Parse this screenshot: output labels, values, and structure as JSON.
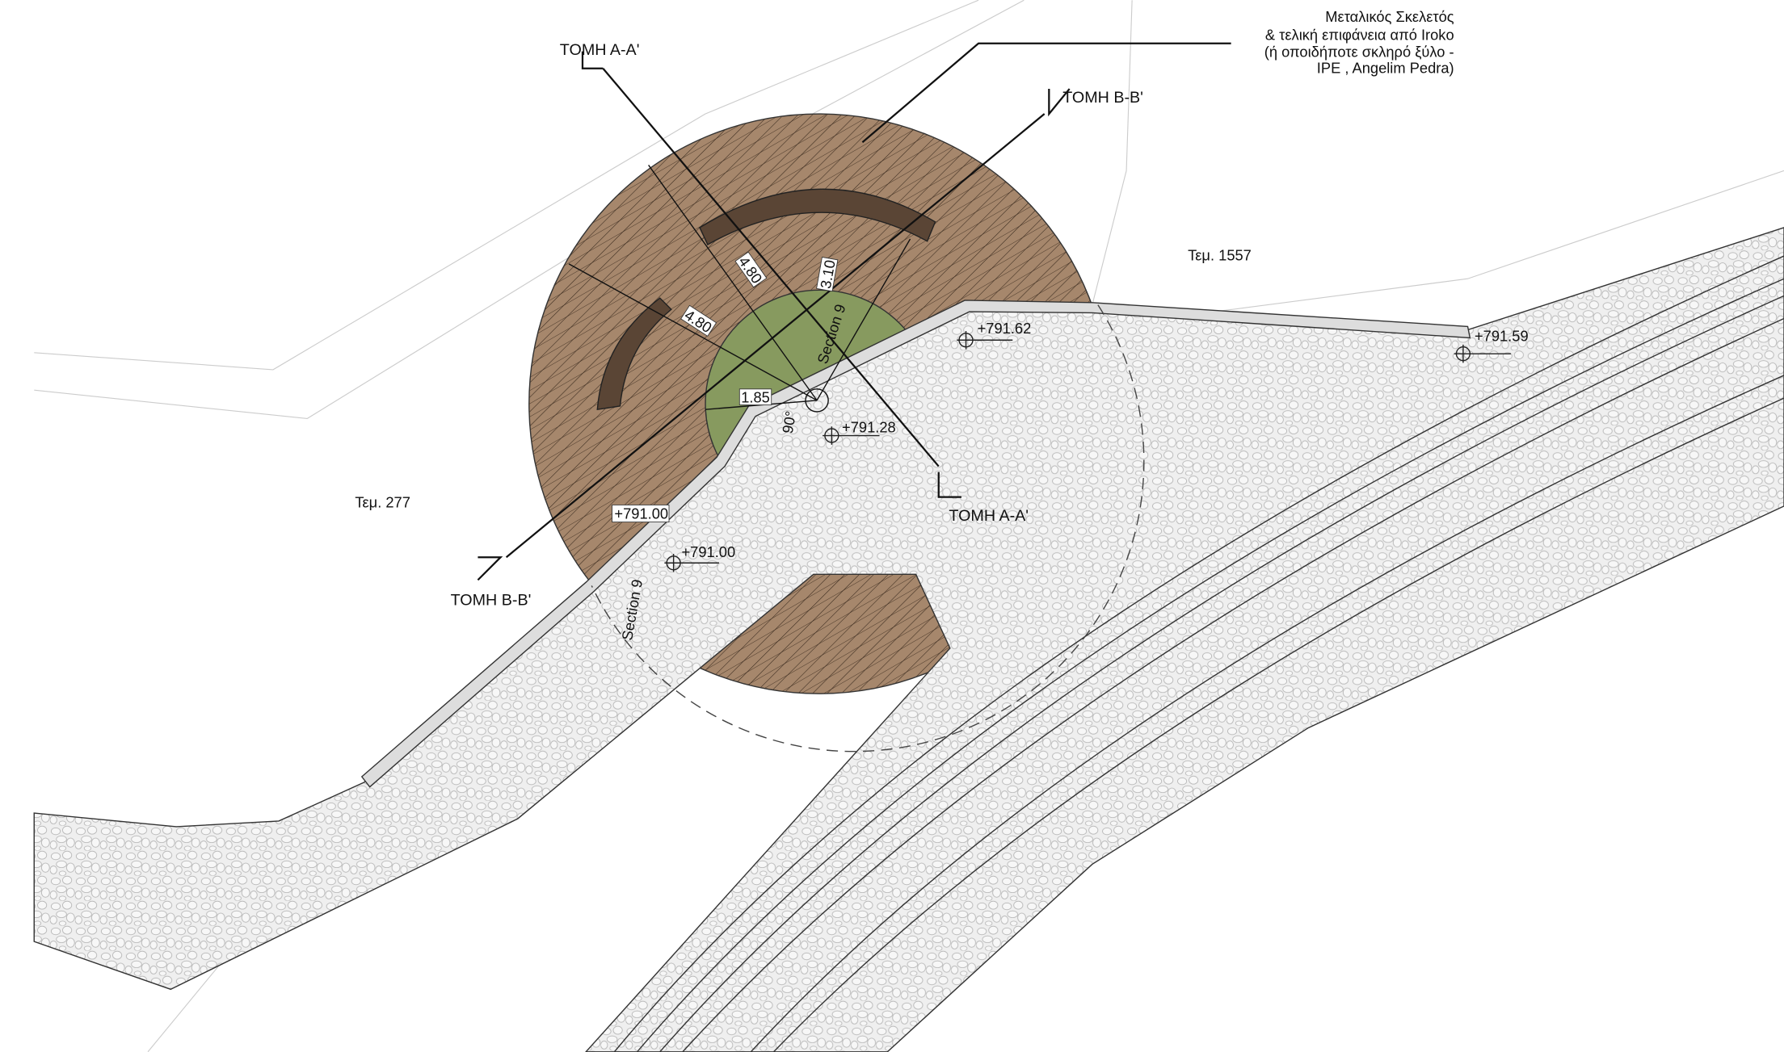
{
  "note": {
    "lines": [
      "Μεταλικός Σκελετός",
      "& τελική επιφάνεια από Iroko",
      "(ή οποιδήποτε  σκληρό ξύλο -",
      "IPE , Angelim Pedra)"
    ]
  },
  "sections": [
    "ΤΟΜΗ Α-Α'",
    "ΤΟΜΗ Β-Β'",
    "ΤΟΜΗ Α-Α'",
    "ΤΟΜΗ Β-Β'"
  ],
  "parcels": [
    "Τεμ. 1557",
    "Τεμ. 277"
  ],
  "elevations": [
    "+791.62",
    "+791.59",
    "+791.28",
    "+791.00",
    "+791.00"
  ],
  "dimensions": [
    "4.80",
    "4.80",
    "3.10",
    "1.85",
    "90°"
  ],
  "section_markers": [
    "Section 9",
    "Section 9"
  ]
}
